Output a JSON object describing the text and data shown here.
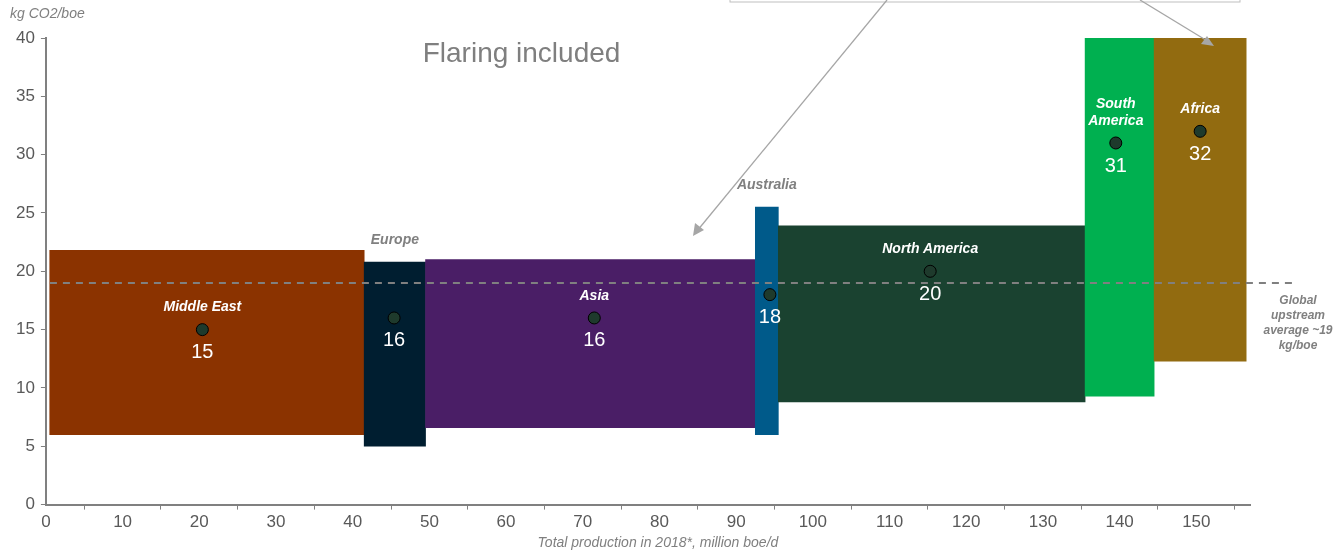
{
  "chart_data": {
    "type": "histogram",
    "title": "Flaring included",
    "xlabel": "Total production in 2018*, million boe/d",
    "ylabel": "kg CO2/boe",
    "series": [
      {
        "bins": [
          0.5,
          41.5,
          49.5,
          92.5,
          95.5,
          135.5,
          144.5,
          156.5
        ],
        "base": [
          6,
          5,
          6.6,
          6,
          8.8,
          9.3,
          12.3
        ],
        "values": [
          15.8,
          15.8,
          14.4,
          19.5,
          15.1,
          30.7,
          27.7
        ],
        "colors": [
          "#8b3300",
          "#001e30",
          "#4a1e66",
          "#005a8a",
          "#1a4230",
          "#00b050",
          "#926b10"
        ]
      },
      {
        "type": "scatter",
        "x": [
          20.4,
          45.4,
          71.5,
          94.4,
          115.3,
          139.5,
          150.5
        ],
        "values": [
          15,
          16,
          16,
          18,
          20,
          31,
          32
        ],
        "value_labels": [
          "15",
          "16",
          "16",
          "18",
          "20",
          "31",
          "32"
        ],
        "color": "#1e3a2c"
      }
    ],
    "marker": "circle",
    "annotations": [
      {
        "text": "Middle East",
        "x": 20.4,
        "y": 15
      },
      {
        "text": "Europe",
        "x": 45.5,
        "y": 20.8
      },
      {
        "text": "Asia",
        "x": 71.5,
        "y": 16
      },
      {
        "text": "Australia",
        "x": 94,
        "y": 25.5
      },
      {
        "text": "North America",
        "x": 115.3,
        "y": 20
      },
      {
        "text": "South America",
        "x": 139.5,
        "y": 31
      },
      {
        "text": "Africa",
        "x": 150.5,
        "y": 32
      }
    ],
    "ref_lines": [
      {
        "axis": "y",
        "value": 19,
        "label": "Global upstream average ~19 kg/boe",
        "color": "#808080",
        "line_style": "dashed"
      }
    ],
    "xlim": [
      0,
      157
    ],
    "xticks": [
      0,
      10,
      20,
      30,
      40,
      50,
      60,
      70,
      80,
      90,
      100,
      110,
      120,
      130,
      140,
      150
    ],
    "ylim": [
      0,
      40
    ],
    "yticks": [
      0,
      5,
      10,
      15,
      20,
      25,
      30,
      35,
      40
    ],
    "grid": false,
    "legend": false
  }
}
